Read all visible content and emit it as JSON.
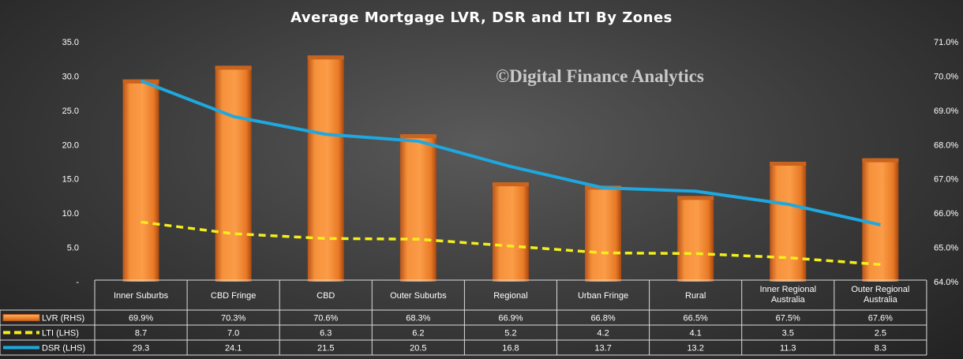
{
  "chart_data": {
    "type": "bar",
    "title": "Average Mortgage  LVR, DSR and LTI By Zones",
    "watermark": "©Digital Finance Analytics",
    "categories": [
      [
        "Inner Suburbs"
      ],
      [
        "CBD Fringe"
      ],
      [
        "CBD"
      ],
      [
        "Outer Suburbs"
      ],
      [
        "Regional"
      ],
      [
        "Urban Fringe"
      ],
      [
        "Rural"
      ],
      [
        "Inner Regional",
        "Australia"
      ],
      [
        "Outer Regional",
        "Australia"
      ]
    ],
    "left_axis": {
      "min": 0,
      "max": 35,
      "step": 5,
      "tick_labels": [
        "-",
        "5.0",
        "10.0",
        "15.0",
        "20.0",
        "25.0",
        "30.0",
        "35.0"
      ]
    },
    "right_axis": {
      "min": 64.0,
      "max": 71.0,
      "step": 1.0,
      "tick_labels": [
        "64.0%",
        "65.0%",
        "66.0%",
        "67.0%",
        "68.0%",
        "69.0%",
        "70.0%",
        "71.0%"
      ]
    },
    "series": [
      {
        "name": "LVR (RHS)",
        "kind": "bar",
        "axis": "right",
        "color": "#f28a33",
        "values": [
          69.9,
          70.3,
          70.6,
          68.3,
          66.9,
          66.8,
          66.5,
          67.5,
          67.6
        ],
        "labels": [
          "69.9%",
          "70.3%",
          "70.6%",
          "68.3%",
          "66.9%",
          "66.8%",
          "66.5%",
          "67.5%",
          "67.6%"
        ]
      },
      {
        "name": "LTI (LHS)",
        "kind": "line-dashed",
        "axis": "left",
        "color": "#f3ee1c",
        "values": [
          8.7,
          7.0,
          6.3,
          6.2,
          5.2,
          4.2,
          4.1,
          3.5,
          2.5
        ],
        "labels": [
          "8.7",
          "7.0",
          "6.3",
          "6.2",
          "5.2",
          "4.2",
          "4.1",
          "3.5",
          "2.5"
        ]
      },
      {
        "name": "DSR (LHS)",
        "kind": "line",
        "axis": "left",
        "color": "#1ea8df",
        "values": [
          29.3,
          24.1,
          21.5,
          20.5,
          16.8,
          13.7,
          13.2,
          11.3,
          8.3
        ],
        "labels": [
          "29.3",
          "24.1",
          "21.5",
          "20.5",
          "16.8",
          "13.7",
          "13.2",
          "11.3",
          "8.3"
        ]
      }
    ],
    "grid": false,
    "legend": "data-table"
  }
}
